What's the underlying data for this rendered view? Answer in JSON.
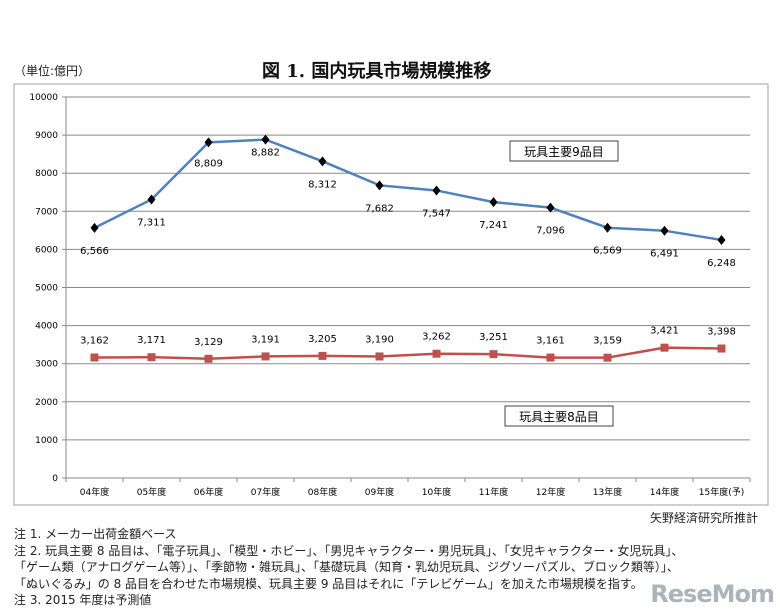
{
  "unit_label": "（単位:億円）",
  "title": "図 1.  国内玩具市場規模推移",
  "source": "矢野経済研究所推計",
  "notes": [
    "注 1.  メーカー出荷金額ベース",
    "注 2.  玩具主要 8 品目は、「電子玩具」、「模型・ホビー」、「男児キャラクター・男児玩具」、「女児キャラクター・女児玩具」、",
    "「ゲーム類（アナログゲーム等）」、「季節物・雑玩具」、「基礎玩具（知育・乳幼児玩具、ジグソーパズル、ブロック類等）」、",
    "「ぬいぐるみ」の 8 品目を合わせた市場規模、玩具主要 9 品目はそれに「テレビゲーム」を加えた市場規模を指す。",
    "注 3. 2015 年度は予測値"
  ],
  "watermark": "ReseMom",
  "chart_data": {
    "type": "line",
    "title": "図 1.  国内玩具市場規模推移",
    "ylabel": "（単位:億円）",
    "categories": [
      "04年度",
      "05年度",
      "06年度",
      "07年度",
      "08年度",
      "09年度",
      "10年度",
      "11年度",
      "12年度",
      "13年度",
      "14年度",
      "15年度(予)"
    ],
    "ylim": [
      0,
      10000
    ],
    "yticks": [
      0,
      1000,
      2000,
      3000,
      4000,
      5000,
      6000,
      7000,
      8000,
      9000,
      10000
    ],
    "grid": true,
    "series": [
      {
        "name": "玩具主要9品目",
        "color": "#4f81bd",
        "marker": "diamond",
        "marker_color": "#000000",
        "values": [
          6566,
          7311,
          8809,
          8882,
          8312,
          7682,
          7547,
          7241,
          7096,
          6569,
          6491,
          6248
        ],
        "labels": [
          "6,566",
          "7,311",
          "8,809",
          "8,882",
          "8,312",
          "7,682",
          "7,547",
          "7,241",
          "7,096",
          "6,569",
          "6,491",
          "6,248"
        ]
      },
      {
        "name": "玩具主要8品目",
        "color": "#c0504d",
        "marker": "square",
        "marker_color": "#c0504d",
        "values": [
          3162,
          3171,
          3129,
          3191,
          3205,
          3190,
          3262,
          3251,
          3161,
          3159,
          3421,
          3398
        ],
        "labels": [
          "3,162",
          "3,171",
          "3,129",
          "3,191",
          "3,205",
          "3,190",
          "3,262",
          "3,251",
          "3,161",
          "3,159",
          "3,421",
          "3,398"
        ]
      }
    ]
  }
}
